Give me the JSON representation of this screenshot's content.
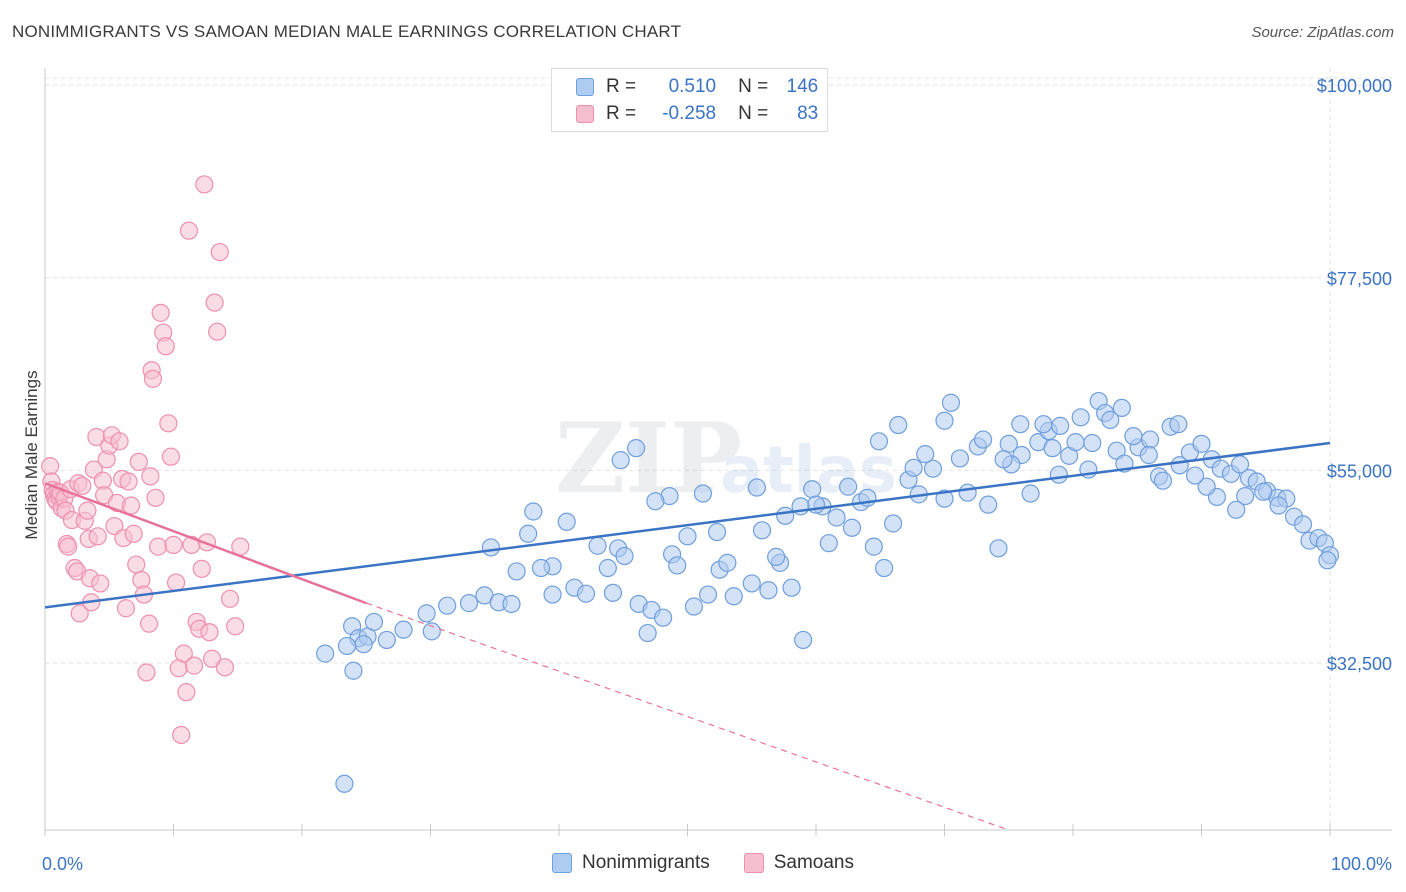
{
  "header": {
    "title": "NONIMMIGRANTS VS SAMOAN MEDIAN MALE EARNINGS CORRELATION CHART",
    "source": "Source: ZipAtlas.com"
  },
  "legend": {
    "rows": [
      {
        "r_label": "R =",
        "r_value": "0.510",
        "n_label": "N =",
        "n_value": "146"
      },
      {
        "r_label": "R =",
        "r_value": "-0.258",
        "n_label": "N =",
        "n_value": "83"
      }
    ]
  },
  "colors": {
    "blue": "#3b74c4",
    "blue_fill": "#aecbf0",
    "blue_stroke": "#6f9fdc",
    "pink": "#e8719a",
    "pink_fill": "#f6bfd0",
    "pink_stroke": "#ee8fb0"
  },
  "chart_data": {
    "type": "scatter",
    "title": "NONIMMIGRANTS VS SAMOAN MEDIAN MALE EARNINGS CORRELATION CHART",
    "xlabel": "",
    "ylabel": "Median Male Earnings",
    "x_tick_labels": [
      "0.0%",
      "100.0%"
    ],
    "y_ticks": [
      {
        "value": 32500,
        "label": "$32,500"
      },
      {
        "value": 55000,
        "label": "$55,000"
      },
      {
        "value": 77500,
        "label": "$77,500"
      },
      {
        "value": 100000,
        "label": "$100,000"
      }
    ],
    "xlim": [
      0,
      100
    ],
    "ylim": [
      13000,
      102000
    ],
    "grid": true,
    "legend_position": "top-center",
    "series": [
      {
        "name": "Nonimmigrants",
        "color": "#6f9fdc",
        "fill": "#aecbf0",
        "trend": {
          "x": [
            0,
            100
          ],
          "y": [
            39000,
            58200
          ],
          "style": "solid"
        },
        "points": [
          [
            23.9,
            36.8
          ],
          [
            24.4,
            35.4
          ],
          [
            25.1,
            35.6
          ],
          [
            25.6,
            37.3
          ],
          [
            23.5,
            34.5
          ],
          [
            24.8,
            34.7
          ],
          [
            26.6,
            35.2
          ],
          [
            27.9,
            36.4
          ],
          [
            30.1,
            36.2
          ],
          [
            21.8,
            33.6
          ],
          [
            24.0,
            31.6
          ],
          [
            23.3,
            18.4
          ],
          [
            29.7,
            38.3
          ],
          [
            31.3,
            39.2
          ],
          [
            33.0,
            39.5
          ],
          [
            34.2,
            40.4
          ],
          [
            35.3,
            39.6
          ],
          [
            36.3,
            39.4
          ],
          [
            34.7,
            46.0
          ],
          [
            36.7,
            43.2
          ],
          [
            37.6,
            47.6
          ],
          [
            38.0,
            50.2
          ],
          [
            39.5,
            43.8
          ],
          [
            39.5,
            40.5
          ],
          [
            38.6,
            43.6
          ],
          [
            40.6,
            49.0
          ],
          [
            41.2,
            41.3
          ],
          [
            42.1,
            40.6
          ],
          [
            43.0,
            46.2
          ],
          [
            43.8,
            43.6
          ],
          [
            44.2,
            40.7
          ],
          [
            44.6,
            45.9
          ],
          [
            45.1,
            45.0
          ],
          [
            46.2,
            39.4
          ],
          [
            46.9,
            36.0
          ],
          [
            47.2,
            38.7
          ],
          [
            48.1,
            37.8
          ],
          [
            48.8,
            45.2
          ],
          [
            49.2,
            43.9
          ],
          [
            50.5,
            39.1
          ],
          [
            51.6,
            40.5
          ],
          [
            52.5,
            43.4
          ],
          [
            53.6,
            40.3
          ],
          [
            55.0,
            41.8
          ],
          [
            56.3,
            41.0
          ],
          [
            55.8,
            48.0
          ],
          [
            57.2,
            44.2
          ],
          [
            58.1,
            41.3
          ],
          [
            59.0,
            35.2
          ],
          [
            59.7,
            52.8
          ],
          [
            60.5,
            50.8
          ],
          [
            61.6,
            49.5
          ],
          [
            62.8,
            48.3
          ],
          [
            63.5,
            51.3
          ],
          [
            64.5,
            46.1
          ],
          [
            65.3,
            43.6
          ],
          [
            66.0,
            48.8
          ],
          [
            67.2,
            53.9
          ],
          [
            68.0,
            52.2
          ],
          [
            69.1,
            55.2
          ],
          [
            70.0,
            51.7
          ],
          [
            70.5,
            62.9
          ],
          [
            71.8,
            52.4
          ],
          [
            72.6,
            57.8
          ],
          [
            73.4,
            51.0
          ],
          [
            74.2,
            45.9
          ],
          [
            75.0,
            58.1
          ],
          [
            75.9,
            60.4
          ],
          [
            76.7,
            52.3
          ],
          [
            77.3,
            58.3
          ],
          [
            78.1,
            59.6
          ],
          [
            78.9,
            54.5
          ],
          [
            79.7,
            56.7
          ],
          [
            80.6,
            61.2
          ],
          [
            81.2,
            55.1
          ],
          [
            82.0,
            63.1
          ],
          [
            82.5,
            61.7
          ],
          [
            83.4,
            57.3
          ],
          [
            84.0,
            55.8
          ],
          [
            85.1,
            57.7
          ],
          [
            86.0,
            58.6
          ],
          [
            86.7,
            54.3
          ],
          [
            87.6,
            60.1
          ],
          [
            88.2,
            60.4
          ],
          [
            89.1,
            57.1
          ],
          [
            90.0,
            58.1
          ],
          [
            90.8,
            56.3
          ],
          [
            91.5,
            55.2
          ],
          [
            92.3,
            54.6
          ],
          [
            93.0,
            55.7
          ],
          [
            93.7,
            54.1
          ],
          [
            94.3,
            53.7
          ],
          [
            95.1,
            52.6
          ],
          [
            95.9,
            51.8
          ],
          [
            96.6,
            51.7
          ],
          [
            97.2,
            49.6
          ],
          [
            97.9,
            48.7
          ],
          [
            98.4,
            46.8
          ],
          [
            99.1,
            47.1
          ],
          [
            99.6,
            46.5
          ],
          [
            100.0,
            45.1
          ],
          [
            99.8,
            44.5
          ],
          [
            94.8,
            52.5
          ],
          [
            96.0,
            50.9
          ],
          [
            93.4,
            52.0
          ],
          [
            92.7,
            50.4
          ],
          [
            91.2,
            51.9
          ],
          [
            90.4,
            53.1
          ],
          [
            89.5,
            54.4
          ],
          [
            88.3,
            55.6
          ],
          [
            87.0,
            53.8
          ],
          [
            85.9,
            56.8
          ],
          [
            84.7,
            59.0
          ],
          [
            83.8,
            62.3
          ],
          [
            82.9,
            60.9
          ],
          [
            81.5,
            58.2
          ],
          [
            80.2,
            58.3
          ],
          [
            79.0,
            60.2
          ],
          [
            78.4,
            57.6
          ],
          [
            77.7,
            60.4
          ],
          [
            76.0,
            56.8
          ],
          [
            75.2,
            55.7
          ],
          [
            74.6,
            56.3
          ],
          [
            73.0,
            58.6
          ],
          [
            71.2,
            56.4
          ],
          [
            70.0,
            60.8
          ],
          [
            68.5,
            56.9
          ],
          [
            67.6,
            55.3
          ],
          [
            66.4,
            60.3
          ],
          [
            64.9,
            58.4
          ],
          [
            64.0,
            51.8
          ],
          [
            62.5,
            53.1
          ],
          [
            61.0,
            46.5
          ],
          [
            60.0,
            51.0
          ],
          [
            58.8,
            50.8
          ],
          [
            57.6,
            49.7
          ],
          [
            56.9,
            44.9
          ],
          [
            55.4,
            53.0
          ],
          [
            53.1,
            44.2
          ],
          [
            52.3,
            47.8
          ],
          [
            51.2,
            52.3
          ],
          [
            50.0,
            47.3
          ],
          [
            48.6,
            52.0
          ],
          [
            47.5,
            51.4
          ],
          [
            46.0,
            57.6
          ],
          [
            44.8,
            56.2
          ]
        ]
      },
      {
        "name": "Samoans",
        "color": "#ee8fb0",
        "fill": "#f6bfd0",
        "trend": {
          "x": [
            0,
            25
          ],
          "y": [
            53500,
            39500
          ],
          "style": "solid"
        },
        "trend_extension": {
          "x": [
            25,
            75
          ],
          "y": [
            39500,
            13000
          ],
          "style": "dashed"
        },
        "points": [
          [
            0.4,
            55.5
          ],
          [
            0.5,
            53.7
          ],
          [
            0.6,
            52.7
          ],
          [
            0.7,
            52.2
          ],
          [
            0.8,
            51.7
          ],
          [
            0.9,
            51.4
          ],
          [
            1.0,
            52.5
          ],
          [
            1.1,
            51.9
          ],
          [
            1.2,
            52.4
          ],
          [
            1.3,
            50.6
          ],
          [
            1.5,
            51.7
          ],
          [
            1.6,
            50.3
          ],
          [
            1.7,
            46.4
          ],
          [
            1.8,
            46.1
          ],
          [
            2.0,
            52.8
          ],
          [
            2.1,
            49.2
          ],
          [
            2.3,
            43.6
          ],
          [
            2.5,
            43.2
          ],
          [
            2.6,
            53.5
          ],
          [
            2.7,
            38.3
          ],
          [
            2.9,
            53.2
          ],
          [
            3.1,
            49.1
          ],
          [
            3.3,
            50.3
          ],
          [
            3.4,
            47.0
          ],
          [
            3.5,
            42.4
          ],
          [
            3.6,
            39.6
          ],
          [
            3.8,
            55.1
          ],
          [
            4.0,
            58.9
          ],
          [
            4.1,
            47.3
          ],
          [
            4.3,
            41.8
          ],
          [
            4.5,
            53.8
          ],
          [
            4.6,
            52.1
          ],
          [
            4.8,
            56.3
          ],
          [
            5.0,
            57.9
          ],
          [
            5.2,
            59.1
          ],
          [
            5.4,
            48.5
          ],
          [
            5.6,
            51.2
          ],
          [
            5.8,
            58.4
          ],
          [
            6.0,
            54.0
          ],
          [
            6.1,
            47.1
          ],
          [
            6.3,
            38.9
          ],
          [
            6.5,
            53.7
          ],
          [
            6.7,
            50.9
          ],
          [
            6.9,
            47.6
          ],
          [
            7.1,
            44.0
          ],
          [
            7.3,
            56.0
          ],
          [
            7.5,
            42.2
          ],
          [
            7.7,
            40.5
          ],
          [
            7.9,
            31.4
          ],
          [
            8.1,
            37.1
          ],
          [
            8.2,
            54.3
          ],
          [
            8.3,
            66.7
          ],
          [
            8.4,
            65.7
          ],
          [
            8.6,
            51.8
          ],
          [
            8.8,
            46.1
          ],
          [
            9.0,
            73.4
          ],
          [
            9.2,
            71.1
          ],
          [
            9.4,
            69.5
          ],
          [
            9.6,
            60.5
          ],
          [
            9.8,
            56.6
          ],
          [
            10.0,
            46.3
          ],
          [
            10.2,
            41.9
          ],
          [
            10.4,
            31.9
          ],
          [
            10.6,
            24.1
          ],
          [
            10.8,
            33.6
          ],
          [
            11.0,
            29.1
          ],
          [
            11.2,
            83.0
          ],
          [
            11.4,
            46.3
          ],
          [
            11.6,
            32.2
          ],
          [
            11.8,
            37.3
          ],
          [
            12.0,
            36.5
          ],
          [
            12.2,
            43.5
          ],
          [
            12.4,
            88.4
          ],
          [
            12.6,
            46.6
          ],
          [
            12.8,
            36.1
          ],
          [
            13.0,
            33.0
          ],
          [
            13.2,
            74.6
          ],
          [
            13.4,
            71.2
          ],
          [
            13.6,
            80.5
          ],
          [
            14.0,
            32.0
          ],
          [
            14.4,
            40.0
          ],
          [
            14.8,
            36.8
          ],
          [
            15.2,
            46.1
          ]
        ]
      }
    ]
  }
}
